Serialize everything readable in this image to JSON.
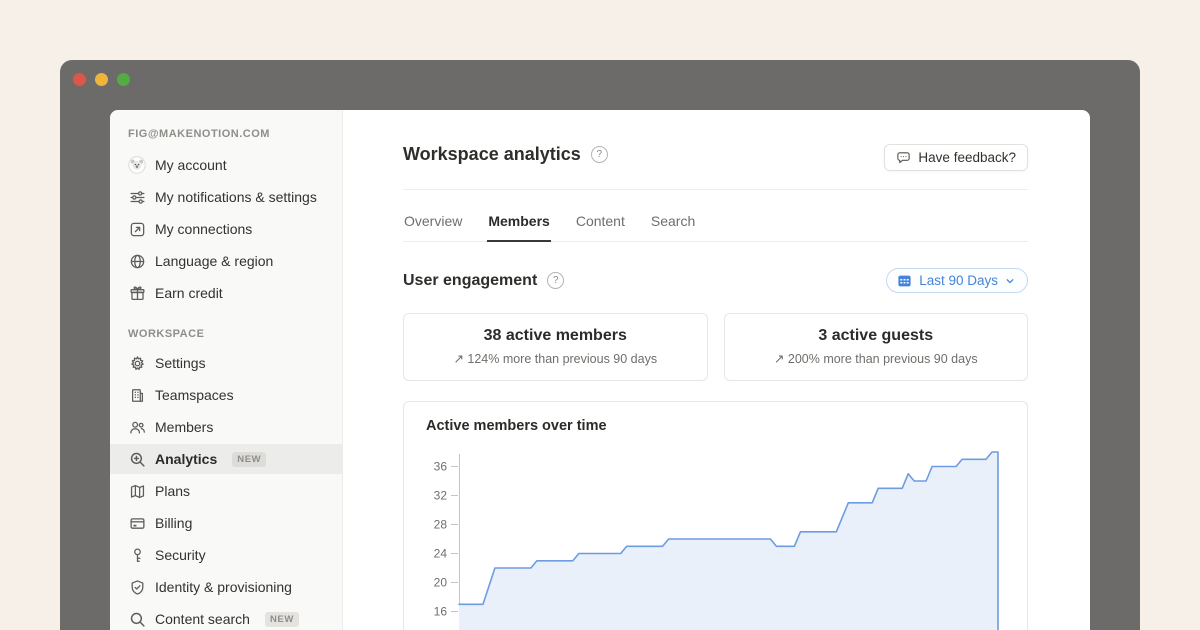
{
  "window": {
    "traffic_lights": [
      "#db5748",
      "#edb43e",
      "#52ab43"
    ]
  },
  "sidebar": {
    "account_header": "FIG@MAKENOTION.COM",
    "account_items": [
      {
        "label": "My account",
        "icon": "koala-avatar"
      },
      {
        "label": "My notifications & settings",
        "icon": "sliders"
      },
      {
        "label": "My connections",
        "icon": "arrow-up-right-box"
      },
      {
        "label": "Language & region",
        "icon": "globe"
      },
      {
        "label": "Earn credit",
        "icon": "gift"
      }
    ],
    "workspace_header": "WORKSPACE",
    "workspace_items": [
      {
        "label": "Settings",
        "icon": "gear",
        "badge": "",
        "active": false
      },
      {
        "label": "Teamspaces",
        "icon": "building",
        "badge": "",
        "active": false
      },
      {
        "label": "Members",
        "icon": "people",
        "badge": "",
        "active": false
      },
      {
        "label": "Analytics",
        "icon": "zoom-in-magnifier",
        "badge": "NEW",
        "active": true
      },
      {
        "label": "Plans",
        "icon": "map",
        "badge": "",
        "active": false
      },
      {
        "label": "Billing",
        "icon": "credit-card",
        "badge": "",
        "active": false
      },
      {
        "label": "Security",
        "icon": "key",
        "badge": "",
        "active": false
      },
      {
        "label": "Identity & provisioning",
        "icon": "shield-check",
        "badge": "",
        "active": false
      },
      {
        "label": "Content search",
        "icon": "magnifier",
        "badge": "NEW",
        "active": false
      }
    ]
  },
  "header": {
    "title": "Workspace analytics",
    "help_glyph": "?",
    "feedback_label": "Have feedback?"
  },
  "tabs": [
    {
      "label": "Overview",
      "active": false
    },
    {
      "label": "Members",
      "active": true
    },
    {
      "label": "Content",
      "active": false
    },
    {
      "label": "Search",
      "active": false
    }
  ],
  "engagement": {
    "title": "User engagement",
    "help_glyph": "?",
    "date_range_label": "Last 90 Days",
    "stats": [
      {
        "value": "38 active members",
        "arrow": "↗",
        "delta": "124% more than previous 90 days"
      },
      {
        "value": "3 active guests",
        "arrow": "↗",
        "delta": "200% more than previous 90 days"
      }
    ]
  },
  "chart_data": {
    "type": "area",
    "title": "Active members over time",
    "xlabel": "",
    "ylabel": "",
    "x_unit": "days",
    "x_range": [
      0,
      90
    ],
    "y_ticks": [
      16,
      20,
      24,
      28,
      32,
      36
    ],
    "ylim": [
      13,
      39
    ],
    "grid": false,
    "legend_position": "none",
    "series": [
      {
        "name": "Active members",
        "points": [
          [
            0,
            17
          ],
          [
            4,
            17
          ],
          [
            6,
            22
          ],
          [
            12,
            22
          ],
          [
            13,
            23
          ],
          [
            19,
            23
          ],
          [
            20,
            24
          ],
          [
            27,
            24
          ],
          [
            28,
            25
          ],
          [
            34,
            25
          ],
          [
            35,
            26
          ],
          [
            52,
            26
          ],
          [
            53,
            25
          ],
          [
            56,
            25
          ],
          [
            57,
            27
          ],
          [
            63,
            27
          ],
          [
            65,
            31
          ],
          [
            69,
            31
          ],
          [
            70,
            33
          ],
          [
            74,
            33
          ],
          [
            75,
            35
          ],
          [
            76,
            34
          ],
          [
            78,
            34
          ],
          [
            79,
            36
          ],
          [
            83,
            36
          ],
          [
            84,
            37
          ],
          [
            88,
            37
          ],
          [
            89,
            38
          ],
          [
            90,
            38
          ]
        ]
      }
    ]
  },
  "colors": {
    "canvas_bg": "#f6f0e8",
    "window_frame": "#6c6b69",
    "sidebar_bg": "#f9f9f8",
    "active_row_bg": "#ececea",
    "accent_blue": "#4584d8",
    "chart_line": "#6d9ce3",
    "chart_fill": "#e9f0fa",
    "card_border": "#e7e6e4",
    "text_dark": "#2f2e2b",
    "axis_gray": "#c6c5c2",
    "tick_text": "#6f6e6a"
  }
}
